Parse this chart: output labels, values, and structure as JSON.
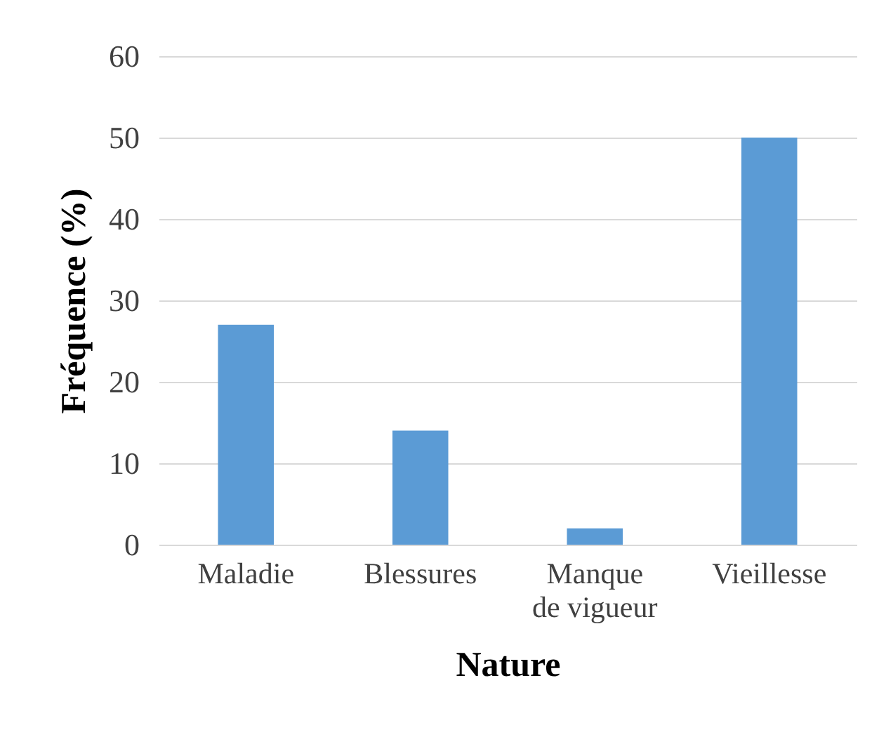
{
  "chart_data": {
    "type": "bar",
    "xlabel": "Nature",
    "ylabel": "Fréquence (%)",
    "categories": [
      "Maladie",
      "Blessures",
      "Manque de vigueur",
      "Vieillesse"
    ],
    "values": [
      27,
      14,
      2,
      50
    ],
    "color": "#5b9bd5",
    "ylim": [
      0,
      60
    ],
    "yticks": [
      0,
      10,
      20,
      30,
      40,
      50,
      60
    ],
    "grid": "y"
  }
}
